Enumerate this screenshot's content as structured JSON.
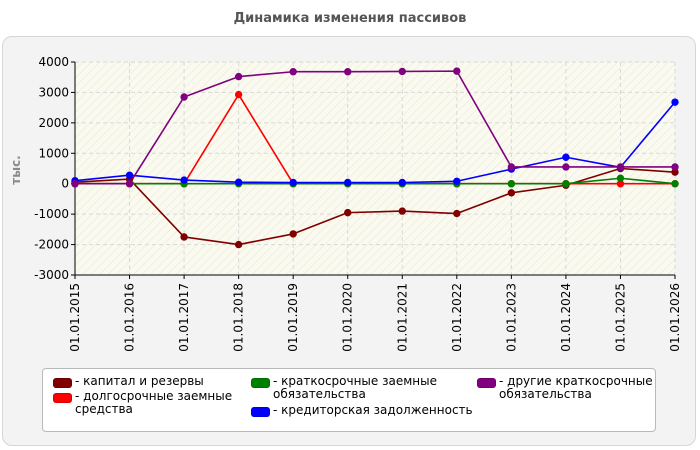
{
  "chart_data": {
    "type": "line",
    "title": "Динамика изменения пассивов",
    "ylabel": "тыс.",
    "xlabel": "",
    "ylim": [
      -3000,
      4000
    ],
    "yticks": [
      "4000",
      "3000",
      "2000",
      "1000",
      "0",
      "-1000",
      "-2000",
      "-3000"
    ],
    "ytick_values": [
      4000,
      3000,
      2000,
      1000,
      0,
      -1000,
      -2000,
      -3000
    ],
    "categories": [
      "01.01.2015",
      "01.01.2016",
      "01.01.2017",
      "01.01.2018",
      "01.01.2019",
      "01.01.2020",
      "01.01.2021",
      "01.01.2022",
      "01.01.2023",
      "01.01.2024",
      "01.01.2025",
      "01.01.2026"
    ],
    "grid": true,
    "legend_position": "bottom",
    "series": [
      {
        "name": "капитал и резервы",
        "color": "#800000",
        "values": [
          50,
          150,
          -1750,
          -2000,
          -1650,
          -950,
          -900,
          -980,
          -300,
          -50,
          500,
          380
        ]
      },
      {
        "name": "долгосрочные заемные средства",
        "color": "#ff0000",
        "values": [
          0,
          0,
          0,
          2930,
          0,
          0,
          0,
          0,
          0,
          0,
          0,
          0
        ]
      },
      {
        "name": "краткосрочные заемные обязательства",
        "color": "#008000",
        "values": [
          0,
          0,
          0,
          0,
          0,
          0,
          0,
          0,
          0,
          0,
          180,
          0
        ]
      },
      {
        "name": "кредиторская задолженность",
        "color": "#0000ff",
        "values": [
          100,
          280,
          120,
          50,
          40,
          40,
          40,
          80,
          480,
          870,
          540,
          2680
        ]
      },
      {
        "name": "другие краткосрочные обязательства",
        "color": "#800080",
        "values": [
          0,
          0,
          2850,
          3520,
          3680,
          3680,
          3690,
          3700,
          550,
          550,
          550,
          550
        ]
      }
    ]
  },
  "legend": {
    "items": [
      {
        "label": "- капитал и резервы",
        "color": "#800000"
      },
      {
        "label": "- долгосрочные заемные\nсредства",
        "color": "#ff0000"
      },
      {
        "label": "- краткосрочные заемные\nобязательства",
        "color": "#008000"
      },
      {
        "label": "- кредиторская задолженность",
        "color": "#0000ff"
      },
      {
        "label": "- другие краткосрочные\nобязательства",
        "color": "#800080"
      }
    ]
  }
}
